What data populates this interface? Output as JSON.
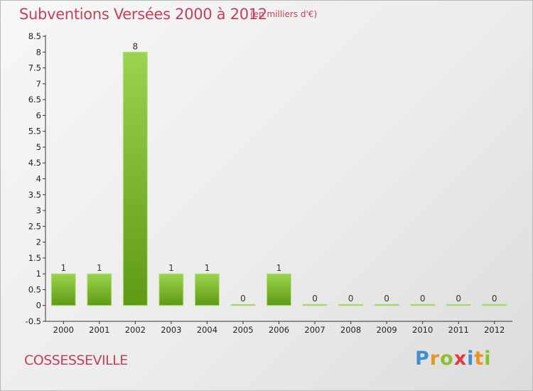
{
  "title": "Subventions Versées 2000 à 2012",
  "subtitle": "(en milliers d'€)",
  "commune": "COSSESSEVILLE",
  "logo": {
    "letters": [
      {
        "ch": "P",
        "color": "#3d8fd1"
      },
      {
        "ch": "r",
        "color": "#e8961e"
      },
      {
        "ch": "o",
        "color": "#8cbf2a"
      },
      {
        "ch": "x",
        "color": "#e23b3b"
      },
      {
        "ch": "i",
        "color": "#3d8fd1"
      },
      {
        "ch": "t",
        "color": "#e8961e"
      },
      {
        "ch": "i",
        "color": "#8cbf2a"
      }
    ]
  },
  "colors": {
    "bar_light": "#9bd44e",
    "bar_dark": "#5f9a14",
    "title": "#c4405a"
  },
  "chart_data": {
    "type": "bar",
    "categories": [
      "2000",
      "2001",
      "2002",
      "2003",
      "2004",
      "2005",
      "2006",
      "2007",
      "2008",
      "2009",
      "2010",
      "2011",
      "2012"
    ],
    "values": [
      1,
      1,
      8,
      1,
      1,
      0,
      1,
      0,
      0,
      0,
      0,
      0,
      0
    ],
    "value_labels": [
      "1",
      "1",
      "8",
      "1",
      "1",
      "0",
      "1",
      "0",
      "0",
      "0",
      "0",
      "0",
      "0"
    ],
    "yticks": [
      "-0.5",
      "0",
      "0.5",
      "1",
      "1.5",
      "2",
      "2.5",
      "3",
      "3.5",
      "4",
      "4.5",
      "5",
      "5.5",
      "6",
      "6.5",
      "7",
      "7.5",
      "8",
      "8.5"
    ],
    "ylim": [
      -0.5,
      8.5
    ],
    "grid": false,
    "title": "Subventions Versées 2000 à 2012",
    "xlabel": "",
    "ylabel": ""
  }
}
